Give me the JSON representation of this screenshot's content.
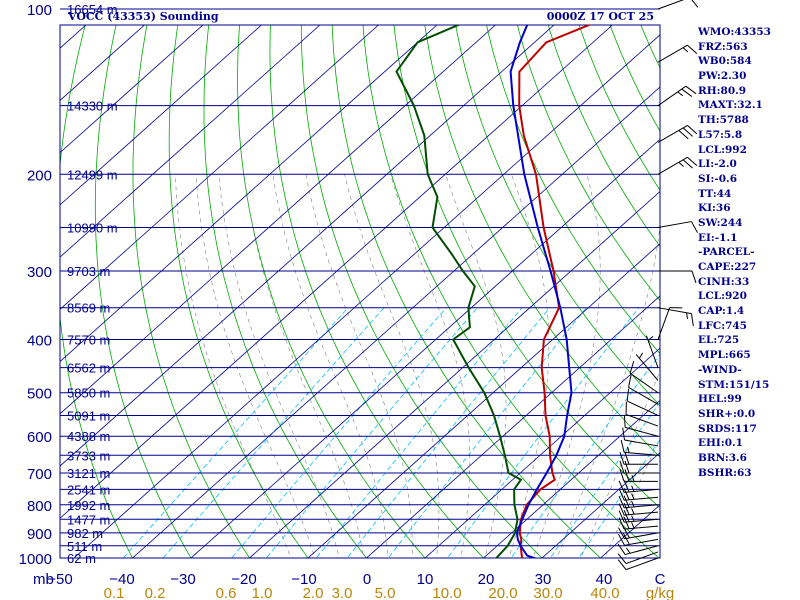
{
  "header": {
    "title": "VOCC (43353) Sounding",
    "valid_time": "0000Z 17 OCT 25"
  },
  "params": [
    "WMO:43353",
    "FRZ:563",
    "WB0:584",
    "PW:2.30",
    "RH:80.9",
    "MAXT:32.1",
    "TH:5788",
    "L57:5.8",
    "LCL:992",
    "LI:-2.0",
    "SI:-0.6",
    "TT:44",
    "KI:36",
    "SW:244",
    "EI:-1.1",
    "-PARCEL-",
    "CAPE:227",
    "CINH:33",
    "LCL:920",
    "CAP:1.4",
    "LFC:745",
    "EL:725",
    "MPL:665",
    "-WIND-",
    "STM:151/15",
    "HEL:99",
    "SHR+:0.0",
    "SRDS:117",
    "EHI:0.1",
    "BRN:3.6",
    "BSHR:63"
  ],
  "colors": {
    "isobar": "#00008b",
    "isotherm": "#00008b",
    "dry_adiabat": "#00aa00",
    "moist_adiabat": "#808080",
    "mixing_ratio": "#00bfff",
    "temperature": "#c00000",
    "dewpoint": "#004d00",
    "parcel": "#0000cc",
    "axis_text_primary": "#00008b",
    "mixing_text": "#b8860b",
    "wind_barb": "#000000"
  },
  "chart_data": {
    "type": "line",
    "title": "VOCC (43353) Sounding",
    "p_ticks": [
      100,
      200,
      300,
      400,
      500,
      600,
      700,
      800,
      900,
      1000
    ],
    "height_labels": [
      {
        "p": 100,
        "label": "16654 m"
      },
      {
        "p": 150,
        "label": "14330 m"
      },
      {
        "p": 200,
        "label": "12499 m"
      },
      {
        "p": 250,
        "label": "10990 m"
      },
      {
        "p": 300,
        "label": "9703 m"
      },
      {
        "p": 350,
        "label": "8569 m"
      },
      {
        "p": 400,
        "label": "7570 m"
      },
      {
        "p": 450,
        "label": "6562 m"
      },
      {
        "p": 500,
        "label": "5850 m"
      },
      {
        "p": 550,
        "label": "5091 m"
      },
      {
        "p": 600,
        "label": "4388 m"
      },
      {
        "p": 650,
        "label": "3733 m"
      },
      {
        "p": 700,
        "label": "3121 m"
      },
      {
        "p": 750,
        "label": "2541 m"
      },
      {
        "p": 800,
        "label": "1992 m"
      },
      {
        "p": 850,
        "label": "1477 m"
      },
      {
        "p": 900,
        "label": "982 m"
      },
      {
        "p": 950,
        "label": "511 m"
      },
      {
        "p": 1000,
        "label": "62 m"
      }
    ],
    "t_ticks": [
      "−50",
      "−40",
      "−30",
      "−20",
      "−10",
      "0",
      "10",
      "20",
      "30",
      "40",
      "C"
    ],
    "pressure_unit_label": "mb",
    "mixing_ratio_labels": [
      "0.1",
      "0.2",
      "0.6",
      "1.0",
      "2.0",
      "3.0",
      "5.0",
      "10.0",
      "20.0",
      "30.0",
      "40.0",
      "g/kg"
    ],
    "mixing_ratio_values": [
      0.1,
      0.2,
      0.6,
      1.0,
      2.0,
      3.0,
      5.0,
      10.0,
      20.0,
      30.0,
      40.0
    ],
    "series": [
      {
        "key": "temperature",
        "points": [
          [
            1002,
            26.8
          ],
          [
            1000,
            26.6
          ],
          [
            950,
            24.0
          ],
          [
            925,
            22.9
          ],
          [
            900,
            21.4
          ],
          [
            850,
            19.0
          ],
          [
            800,
            17.2
          ],
          [
            750,
            16.6
          ],
          [
            720,
            17.2
          ],
          [
            700,
            15.5
          ],
          [
            650,
            11.7
          ],
          [
            600,
            8.0
          ],
          [
            550,
            3.3
          ],
          [
            500,
            -1.2
          ],
          [
            450,
            -6.5
          ],
          [
            400,
            -11.5
          ],
          [
            350,
            -15.0
          ],
          [
            300,
            -23.0
          ],
          [
            250,
            -33.0
          ],
          [
            200,
            -44.5
          ],
          [
            170,
            -54.0
          ],
          [
            150,
            -60.5
          ],
          [
            130,
            -67.0
          ],
          [
            115,
            -68.0
          ],
          [
            105,
            -63.0
          ],
          [
            100,
            -59.0
          ]
        ]
      },
      {
        "key": "dewpoint",
        "points": [
          [
            1002,
            22.3
          ],
          [
            1000,
            22.2
          ],
          [
            950,
            21.8
          ],
          [
            900,
            20.6
          ],
          [
            850,
            18.4
          ],
          [
            800,
            15.1
          ],
          [
            750,
            12.1
          ],
          [
            720,
            11.4
          ],
          [
            700,
            8.0
          ],
          [
            650,
            4.0
          ],
          [
            600,
            -0.5
          ],
          [
            550,
            -5.5
          ],
          [
            500,
            -11.5
          ],
          [
            450,
            -19.0
          ],
          [
            400,
            -27.0
          ],
          [
            380,
            -26.5
          ],
          [
            350,
            -30.5
          ],
          [
            320,
            -33.5
          ],
          [
            300,
            -38.5
          ],
          [
            280,
            -43.5
          ],
          [
            250,
            -52.0
          ],
          [
            220,
            -57.0
          ],
          [
            200,
            -63.0
          ],
          [
            170,
            -71.0
          ],
          [
            150,
            -78.5
          ],
          [
            130,
            -88.0
          ],
          [
            115,
            -90.0
          ],
          [
            100,
            -83.0
          ]
        ]
      },
      {
        "key": "parcel",
        "points": [
          [
            1002,
            29.0
          ],
          [
            990,
            27.0
          ],
          [
            950,
            24.0
          ],
          [
            925,
            22.3
          ],
          [
            900,
            20.9
          ],
          [
            850,
            19.2
          ],
          [
            800,
            17.5
          ],
          [
            750,
            16.0
          ],
          [
            700,
            14.5
          ],
          [
            650,
            12.8
          ],
          [
            600,
            10.5
          ],
          [
            550,
            7.0
          ],
          [
            500,
            3.4
          ],
          [
            450,
            -1.8
          ],
          [
            400,
            -7.6
          ],
          [
            350,
            -14.8
          ],
          [
            300,
            -23.5
          ],
          [
            250,
            -34.0
          ],
          [
            200,
            -46.5
          ],
          [
            150,
            -61.5
          ],
          [
            130,
            -68.5
          ],
          [
            115,
            -72.5
          ],
          [
            100,
            -76.5
          ]
        ]
      }
    ],
    "wind_barbs": [
      {
        "p": 1000,
        "dir": 250,
        "spd": 8
      },
      {
        "p": 975,
        "dir": 250,
        "spd": 12
      },
      {
        "p": 950,
        "dir": 255,
        "spd": 15
      },
      {
        "p": 925,
        "dir": 260,
        "spd": 20
      },
      {
        "p": 900,
        "dir": 260,
        "spd": 22
      },
      {
        "p": 875,
        "dir": 265,
        "spd": 25
      },
      {
        "p": 850,
        "dir": 265,
        "spd": 25
      },
      {
        "p": 825,
        "dir": 265,
        "spd": 25
      },
      {
        "p": 800,
        "dir": 265,
        "spd": 25
      },
      {
        "p": 775,
        "dir": 265,
        "spd": 25
      },
      {
        "p": 750,
        "dir": 265,
        "spd": 25
      },
      {
        "p": 725,
        "dir": 270,
        "spd": 25
      },
      {
        "p": 700,
        "dir": 270,
        "spd": 22
      },
      {
        "p": 675,
        "dir": 270,
        "spd": 20
      },
      {
        "p": 650,
        "dir": 275,
        "spd": 15
      },
      {
        "p": 625,
        "dir": 280,
        "spd": 12
      },
      {
        "p": 600,
        "dir": 285,
        "spd": 10
      },
      {
        "p": 575,
        "dir": 290,
        "spd": 10
      },
      {
        "p": 550,
        "dir": 295,
        "spd": 12
      },
      {
        "p": 525,
        "dir": 300,
        "spd": 10
      },
      {
        "p": 500,
        "dir": 305,
        "spd": 8
      },
      {
        "p": 475,
        "dir": 320,
        "spd": 5
      },
      {
        "p": 450,
        "dir": 340,
        "spd": 3
      },
      {
        "p": 400,
        "dir": 20,
        "spd": 10
      },
      {
        "p": 350,
        "dir": 100,
        "spd": 15
      },
      {
        "p": 300,
        "dir": 90,
        "spd": 10
      },
      {
        "p": 250,
        "dir": 80,
        "spd": 8
      },
      {
        "p": 200,
        "dir": 60,
        "spd": 25
      },
      {
        "p": 175,
        "dir": 60,
        "spd": 30
      },
      {
        "p": 150,
        "dir": 55,
        "spd": 25
      },
      {
        "p": 125,
        "dir": 60,
        "spd": 15
      },
      {
        "p": 100,
        "dir": 70,
        "spd": 10
      }
    ]
  }
}
